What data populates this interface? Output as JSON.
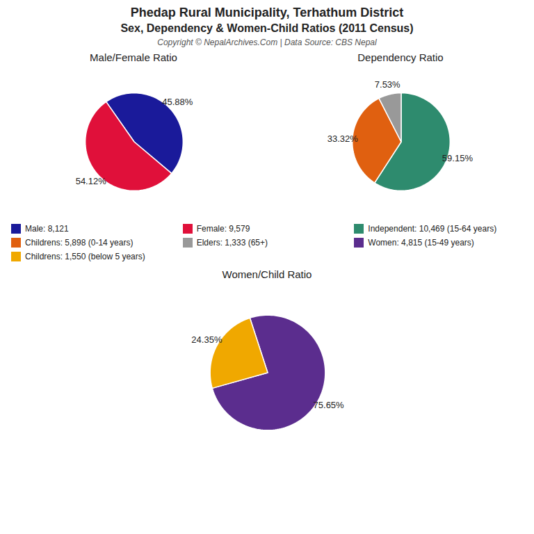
{
  "title": "Phedap Rural Municipality, Terhathum District",
  "subtitle": "Sex, Dependency & Women-Child Ratios (2011 Census)",
  "caption": "Copyright © NepalArchives.Com | Data Source: CBS Nepal",
  "chart_data": [
    {
      "type": "pie",
      "title": "Male/Female Ratio",
      "categories": [
        "Male: 8,121",
        "Female: 9,579"
      ],
      "values": [
        45.88,
        54.12
      ],
      "value_labels": [
        "45.88%",
        "54.12%"
      ],
      "colors": [
        "#1a1a9a",
        "#e0103a"
      ],
      "data_labels": true,
      "legend": "bottom"
    },
    {
      "type": "pie",
      "title": "Dependency Ratio",
      "categories": [
        "Independent: 10,469 (15-64 years)",
        "Childrens: 5,898 (0-14 years)",
        "Elders: 1,333 (65+)"
      ],
      "values": [
        59.15,
        33.32,
        7.53
      ],
      "value_labels": [
        "59.15%",
        "33.32%",
        "7.53%"
      ],
      "colors": [
        "#2e8b6e",
        "#e06010",
        "#999999"
      ],
      "data_labels": true,
      "legend": "bottom"
    },
    {
      "type": "pie",
      "title": "Women/Child Ratio",
      "categories": [
        "Women: 4,815 (15-49 years)",
        "Childrens: 1,550 (below 5 years)"
      ],
      "values": [
        75.65,
        24.35
      ],
      "value_labels": [
        "75.65%",
        "24.35%"
      ],
      "colors": [
        "#5b2d8e",
        "#f0a800"
      ],
      "data_labels": true,
      "legend": "bottom"
    }
  ]
}
